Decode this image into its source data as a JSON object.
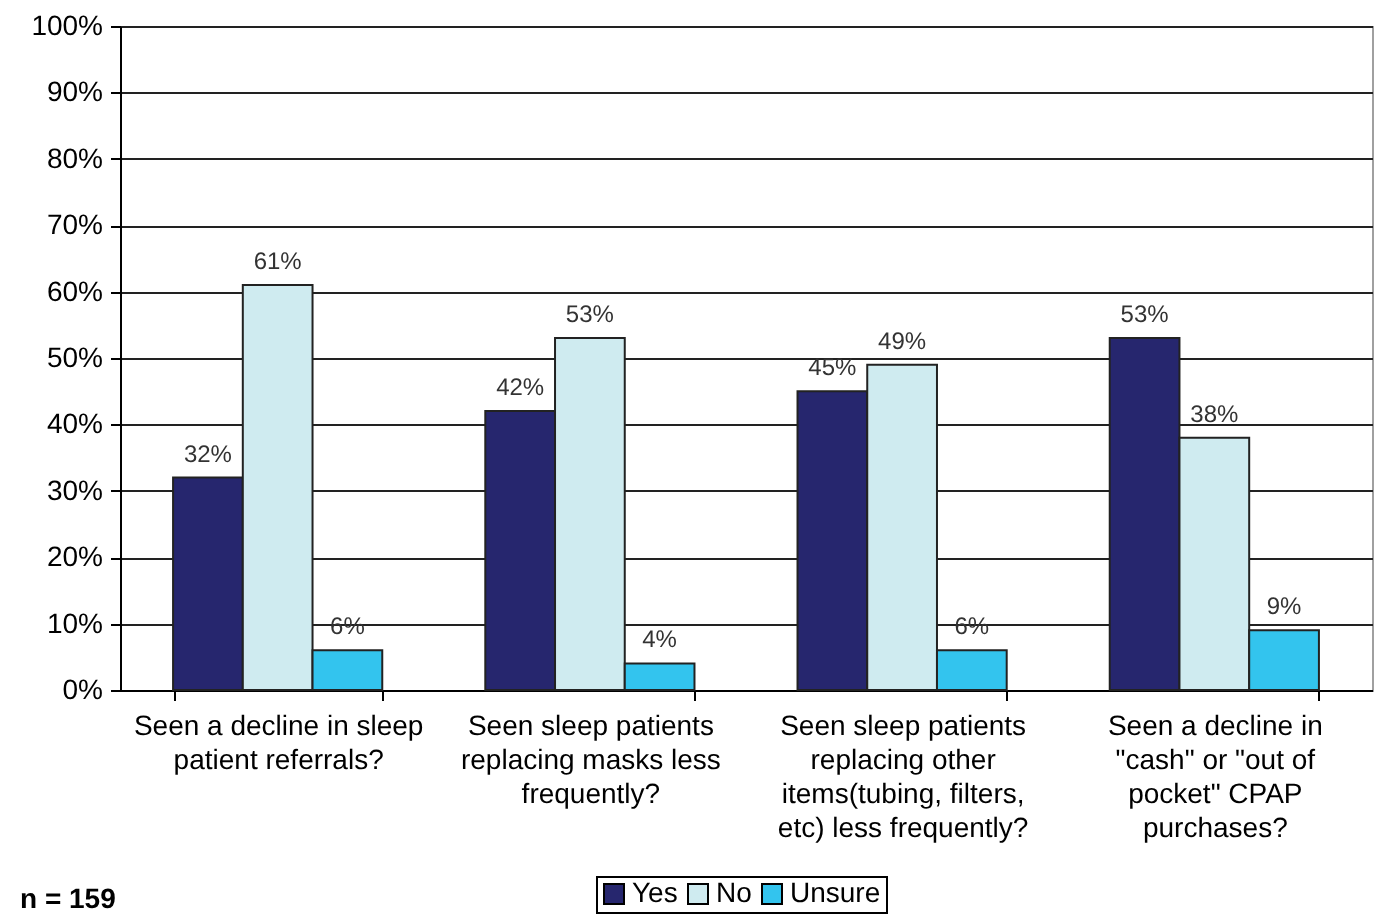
{
  "chart_data": {
    "type": "bar",
    "categories": [
      "Seen a decline in sleep patient referrals?",
      "Seen sleep patients replacing masks less frequently?",
      "Seen sleep patients replacing other items(tubing, filters, etc) less frequently?",
      "Seen a decline in \"cash\" or \"out of pocket\" CPAP purchases?"
    ],
    "series": [
      {
        "name": "Yes",
        "color": "#26266e",
        "values": [
          32,
          42,
          45,
          53
        ],
        "value_labels": [
          "32%",
          "42%",
          "45%",
          "53%"
        ]
      },
      {
        "name": "No",
        "color": "#cfebf0",
        "values": [
          61,
          53,
          49,
          38
        ],
        "value_labels": [
          "61%",
          "53%",
          "49%",
          "38%"
        ]
      },
      {
        "name": "Unsure",
        "color": "#33c4ee",
        "values": [
          6,
          4,
          6,
          9
        ],
        "value_labels": [
          "6%",
          "4%",
          "6%",
          "9%"
        ]
      }
    ],
    "ylim": [
      0,
      100
    ],
    "yticks": [
      {
        "value": 0,
        "label": "0%"
      },
      {
        "value": 10,
        "label": "10%"
      },
      {
        "value": 20,
        "label": "20%"
      },
      {
        "value": 30,
        "label": "30%"
      },
      {
        "value": 40,
        "label": "40%"
      },
      {
        "value": 50,
        "label": "50%"
      },
      {
        "value": 60,
        "label": "60%"
      },
      {
        "value": 70,
        "label": "70%"
      },
      {
        "value": 80,
        "label": "80%"
      },
      {
        "value": 90,
        "label": "90%"
      },
      {
        "value": 100,
        "label": "100%"
      }
    ],
    "grid": "y",
    "legend": "bottom",
    "annotations": [
      "n = 159"
    ]
  }
}
